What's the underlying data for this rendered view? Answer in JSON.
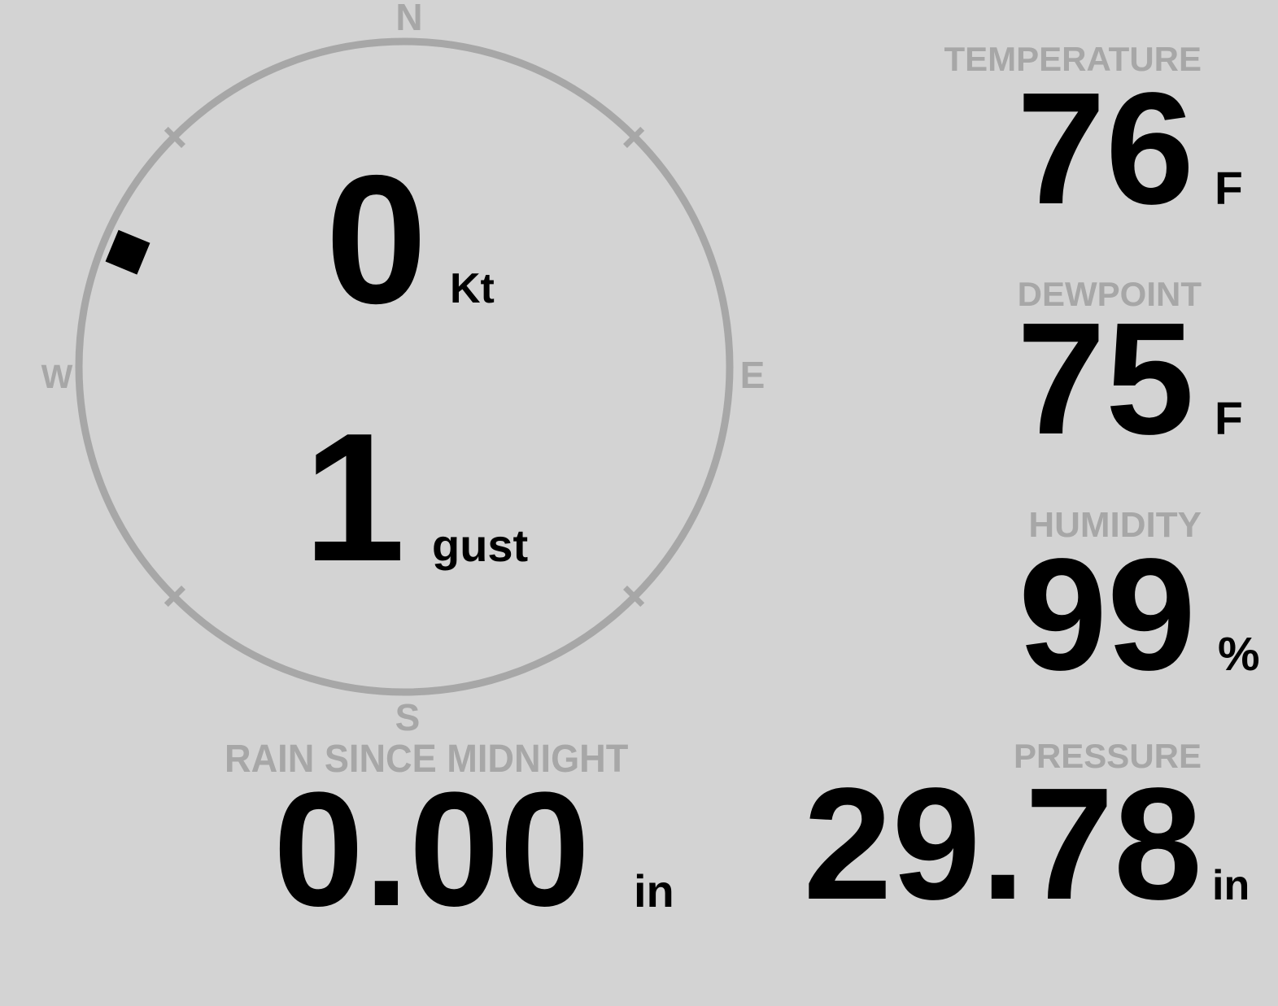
{
  "colors": {
    "background": "#d3d3d3",
    "muted_gray": "#a7a7a7",
    "value_black": "#000000"
  },
  "wind": {
    "compass": {
      "north": "N",
      "east": "E",
      "south": "S",
      "west": "W"
    },
    "speed": {
      "value": "0",
      "unit": "Kt"
    },
    "gust": {
      "value": "1",
      "unit": "gust"
    },
    "direction_degrees": 292.5
  },
  "metrics": {
    "temperature": {
      "label": "TEMPERATURE",
      "value": "76",
      "unit": "F"
    },
    "dewpoint": {
      "label": "DEWPOINT",
      "value": "75",
      "unit": "F"
    },
    "humidity": {
      "label": "HUMIDITY",
      "value": "99",
      "unit": "%"
    },
    "pressure": {
      "label": "PRESSURE",
      "value": "29.78",
      "unit": "in"
    },
    "rain": {
      "label": "RAIN SINCE MIDNIGHT",
      "value": "0.00",
      "unit": "in"
    }
  }
}
